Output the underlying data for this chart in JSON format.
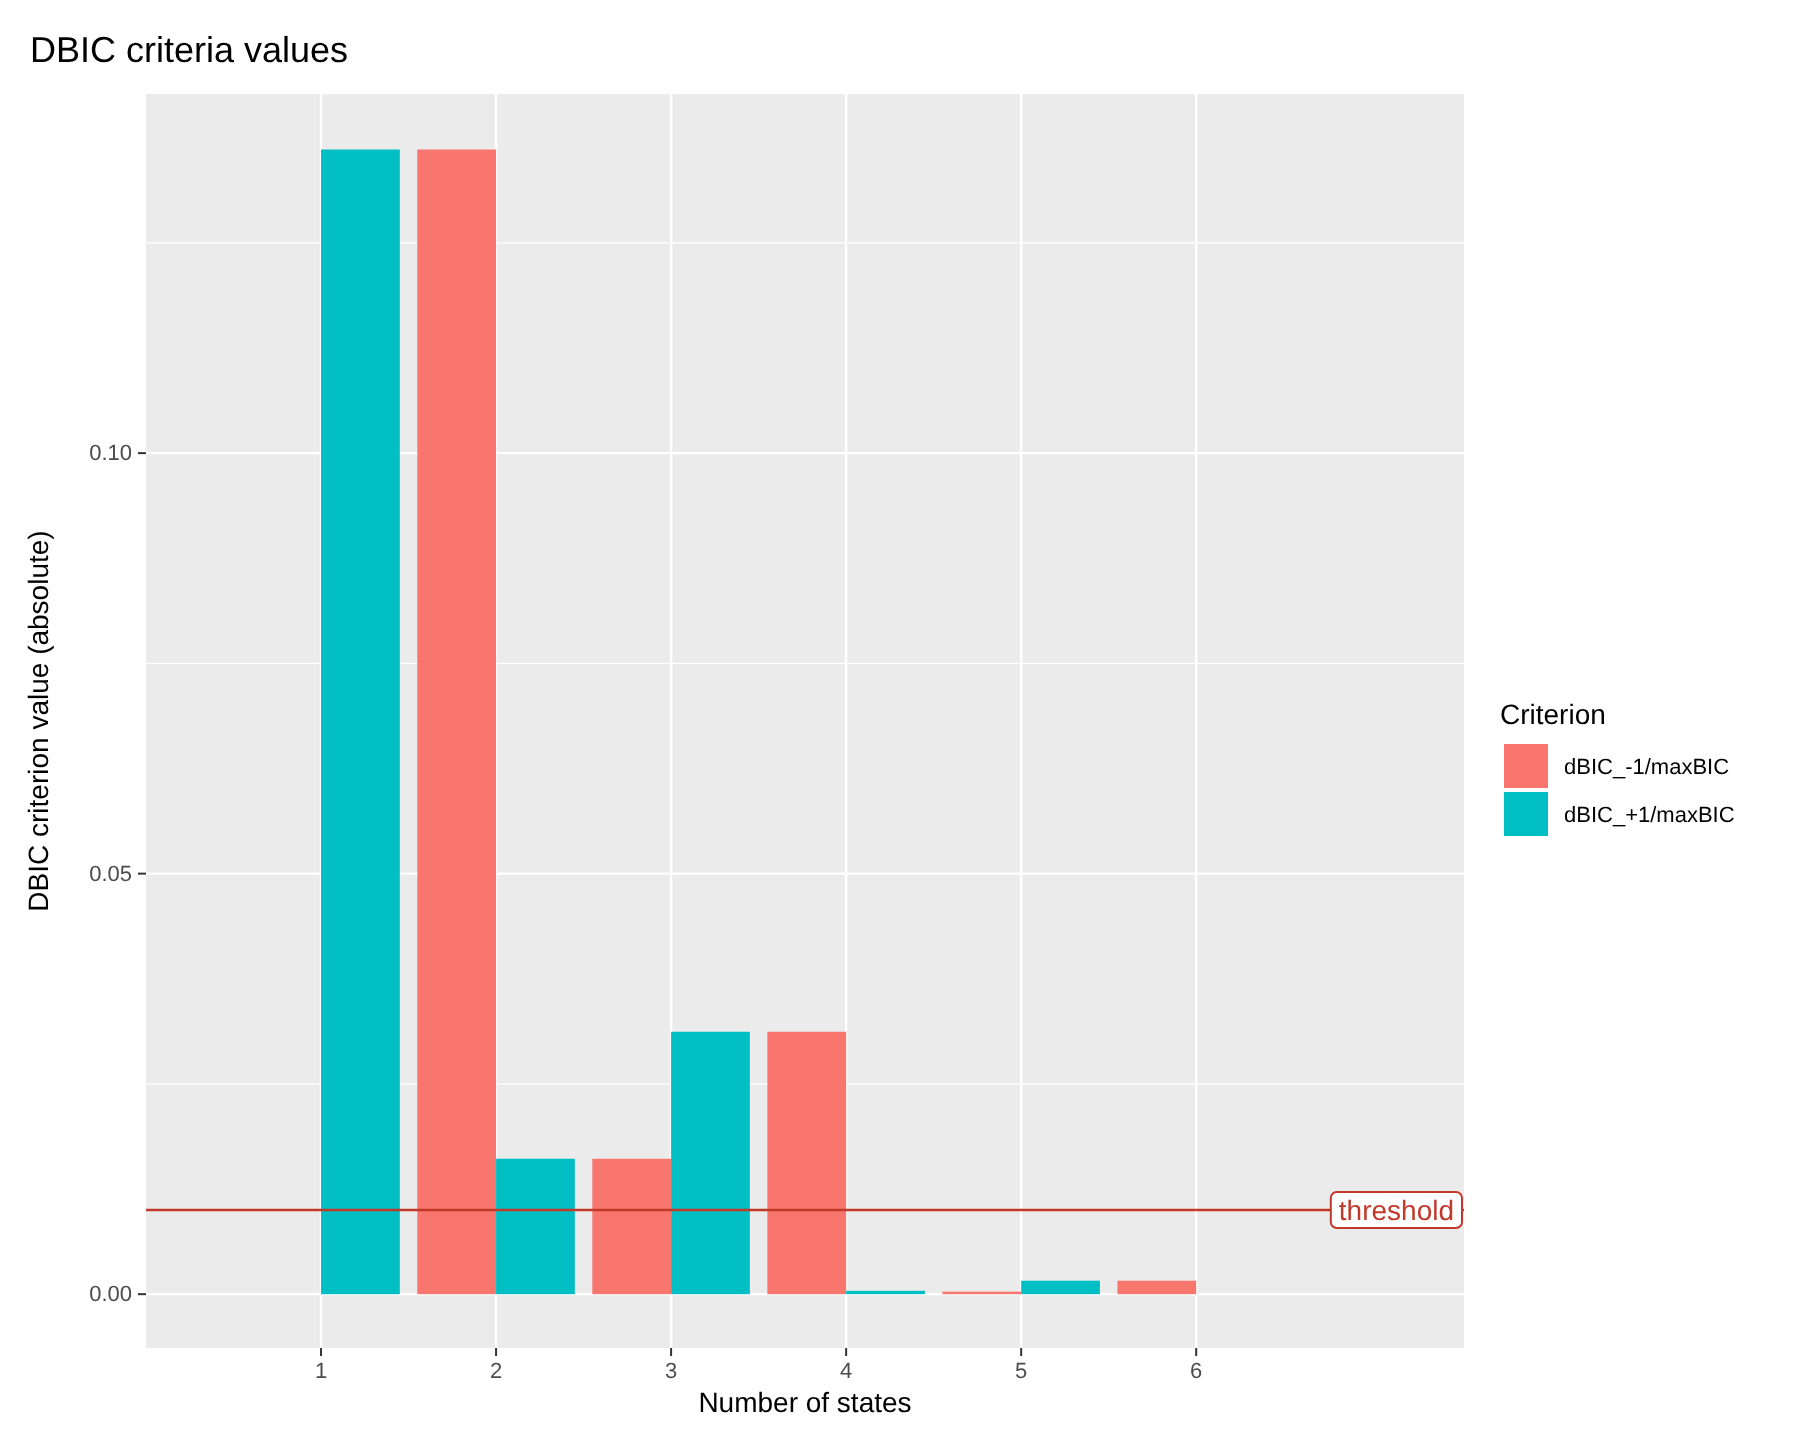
{
  "chart_data": {
    "type": "bar",
    "title": "DBIC criteria values",
    "xlabel": "Number of states",
    "ylabel": "DBIC criterion value (absolute)",
    "legend_title": "Criterion",
    "x": [
      1,
      2,
      3,
      4,
      5,
      6
    ],
    "series": [
      {
        "name": "dBIC_-1/maxBIC",
        "color": "#f8766d",
        "values": [
          null,
          0.1361,
          0.0161,
          0.0312,
          0.0003,
          0.0016
        ]
      },
      {
        "name": "dBIC_+1/maxBIC",
        "color": "#00bfc4",
        "values": [
          0.1361,
          0.0161,
          0.0312,
          0.0004,
          0.0016,
          null
        ]
      }
    ],
    "xlim": [
      0,
      7.53
    ],
    "xticks": [
      1,
      2,
      3,
      4,
      5,
      6
    ],
    "ylim": [
      -0.0064,
      0.1427
    ],
    "yticks": [
      {
        "value": 0,
        "label": "0.00"
      },
      {
        "value": 0.05,
        "label": "0.05"
      },
      {
        "value": 0.1,
        "label": "0.10"
      }
    ],
    "ref_lines": [
      {
        "axis": "y",
        "value": 0.01,
        "label": "threshold",
        "color": "#c0392b"
      }
    ],
    "grid": true,
    "legend": "right"
  }
}
